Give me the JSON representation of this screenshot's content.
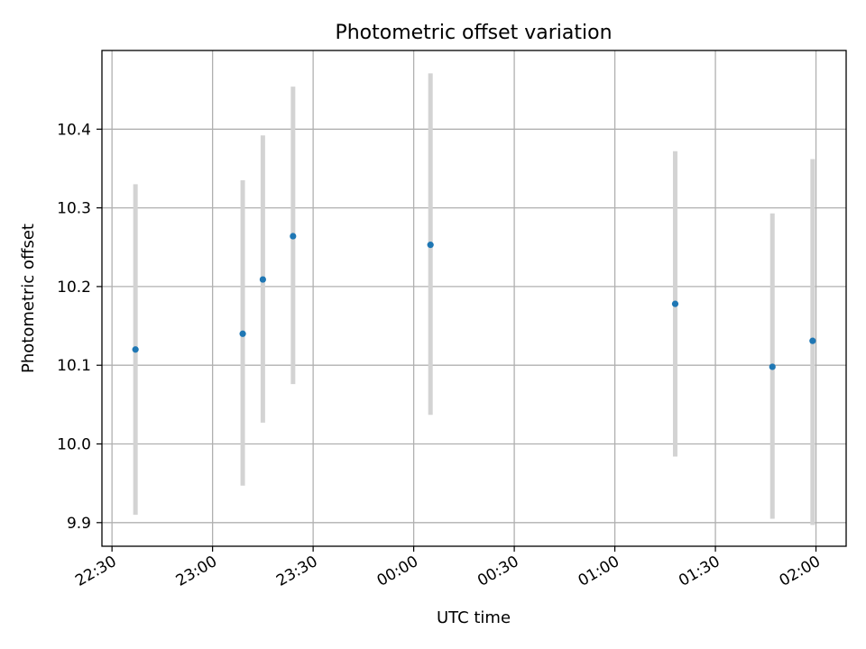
{
  "chart_data": {
    "type": "scatter",
    "title": "Photometric offset variation",
    "xlabel": "UTC time",
    "ylabel": "Photometric offset",
    "x_unit": "minutes",
    "xlim": [
      "22:27",
      "02:09"
    ],
    "ylim": [
      9.87,
      10.5
    ],
    "grid": true,
    "x_ticks": [
      "22:30",
      "23:00",
      "23:30",
      "00:00",
      "00:30",
      "01:00",
      "01:30",
      "02:00"
    ],
    "y_ticks": [
      "9.9",
      "10.0",
      "10.1",
      "10.2",
      "10.3",
      "10.4"
    ],
    "point_color": "#1f77b4",
    "errorbar_color": "#d3d3d3",
    "points": [
      {
        "time": "22:37",
        "value": 10.12,
        "low": 9.91,
        "high": 10.33
      },
      {
        "time": "23:09",
        "value": 10.14,
        "low": 9.947,
        "high": 10.335
      },
      {
        "time": "23:15",
        "value": 10.209,
        "low": 10.027,
        "high": 10.392
      },
      {
        "time": "23:24",
        "value": 10.264,
        "low": 10.076,
        "high": 10.454
      },
      {
        "time": "00:05",
        "value": 10.253,
        "low": 10.037,
        "high": 10.471
      },
      {
        "time": "01:18",
        "value": 10.178,
        "low": 9.984,
        "high": 10.372
      },
      {
        "time": "01:47",
        "value": 10.098,
        "low": 9.905,
        "high": 10.293
      },
      {
        "time": "01:59",
        "value": 10.131,
        "low": 9.897,
        "high": 10.362
      }
    ]
  }
}
